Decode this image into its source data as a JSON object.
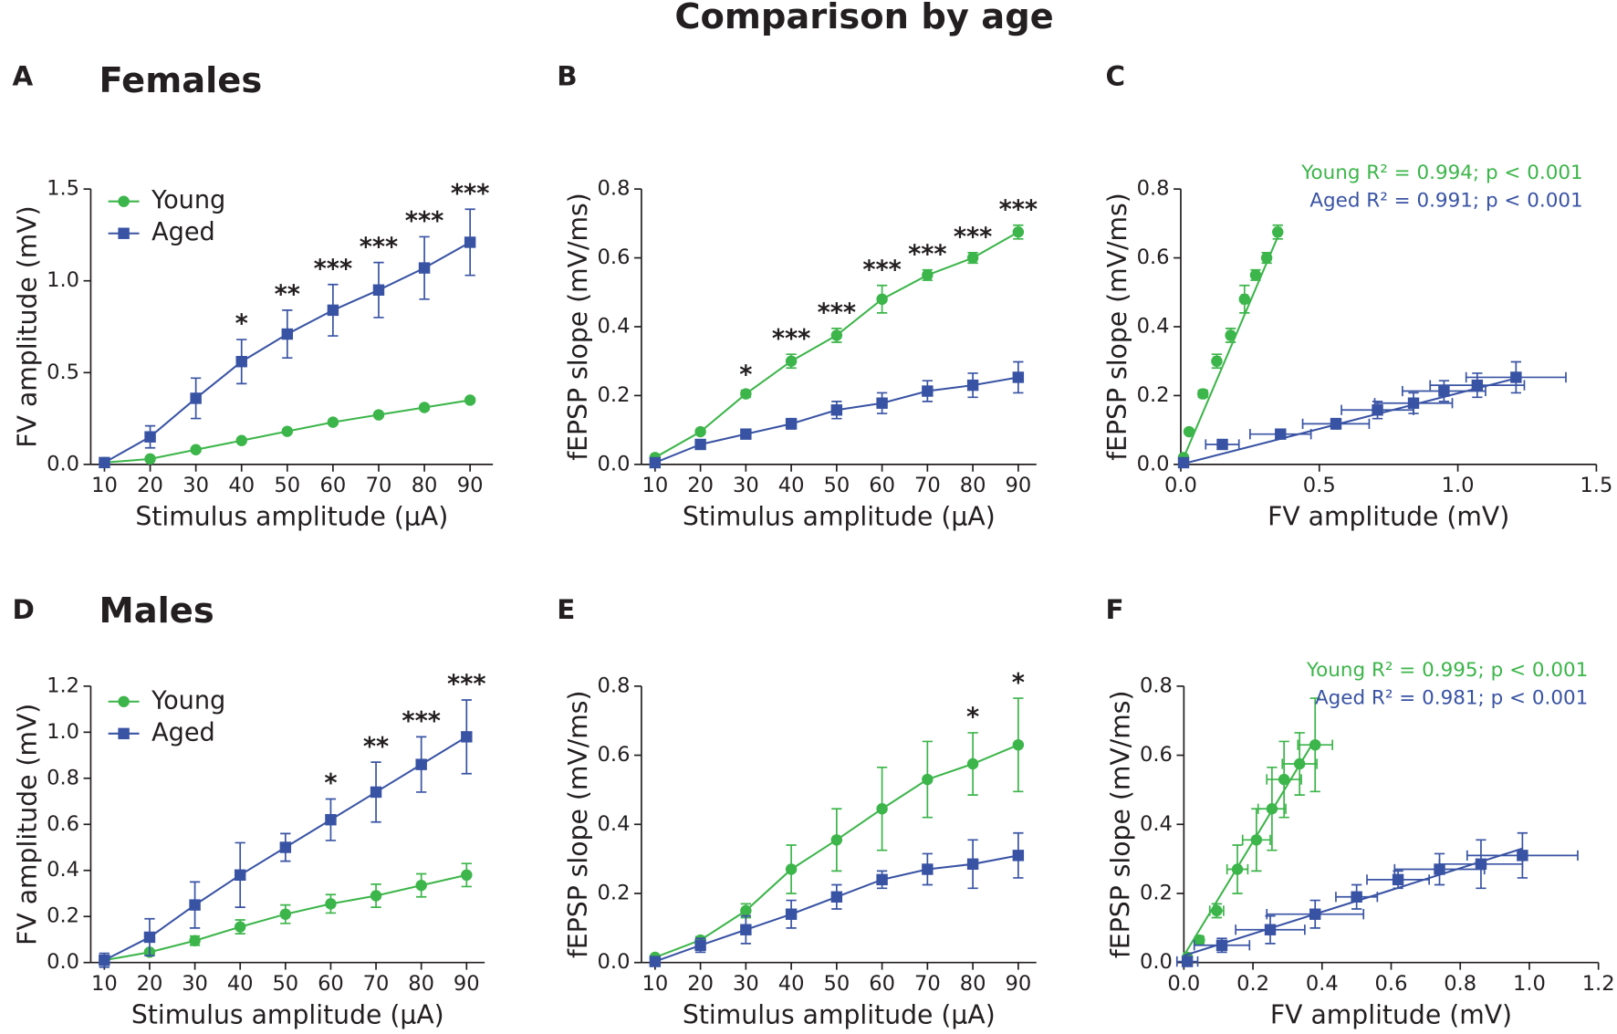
{
  "title": "Comparison by age",
  "chart_data": [
    {
      "type": "line",
      "panel": "A",
      "title": "Females",
      "xlabel": "Stimulus amplitude (µA)",
      "ylabel": "FV amplitude (mV)",
      "x": [
        10,
        20,
        30,
        40,
        50,
        60,
        70,
        80,
        90
      ],
      "xlim": [
        7,
        95
      ],
      "xticks": [
        10,
        20,
        30,
        40,
        50,
        60,
        70,
        80,
        90
      ],
      "ylim": [
        0,
        1.5
      ],
      "yticks": [
        {
          "value": 0,
          "label": "0.0"
        },
        0.5,
        {
          "value": 1,
          "label": "1.0"
        },
        1.5
      ],
      "legend": "upper left",
      "series": [
        {
          "name": "Young",
          "color": "#3cb54a",
          "marker": "circle",
          "values": [
            0.01,
            0.03,
            0.08,
            0.13,
            0.18,
            0.23,
            0.27,
            0.31,
            0.35
          ],
          "errors": [
            0.005,
            0.005,
            0.01,
            0.01,
            0.01,
            0.01,
            0.01,
            0.01,
            0.01
          ]
        },
        {
          "name": "Aged",
          "color": "#3953a4",
          "marker": "square",
          "values": [
            0.01,
            0.15,
            0.36,
            0.56,
            0.71,
            0.84,
            0.95,
            1.07,
            1.21
          ],
          "errors": [
            0.01,
            0.06,
            0.11,
            0.12,
            0.13,
            0.14,
            0.15,
            0.17,
            0.18
          ]
        }
      ],
      "annotations": [
        {
          "x": 40,
          "label": "*"
        },
        {
          "x": 50,
          "label": "**"
        },
        {
          "x": 60,
          "label": "***"
        },
        {
          "x": 70,
          "label": "***"
        },
        {
          "x": 80,
          "label": "***"
        },
        {
          "x": 90,
          "label": "***"
        }
      ]
    },
    {
      "type": "line",
      "panel": "B",
      "xlabel": "Stimulus amplitude (µA)",
      "ylabel": "fEPSP slope (mV/ms)",
      "x": [
        10,
        20,
        30,
        40,
        50,
        60,
        70,
        80,
        90
      ],
      "xlim": [
        7,
        94
      ],
      "xticks": [
        10,
        20,
        30,
        40,
        50,
        60,
        70,
        80,
        90
      ],
      "ylim": [
        0,
        0.8
      ],
      "yticks": [
        {
          "value": 0,
          "label": "0.0"
        },
        0.2,
        0.4,
        0.6,
        0.8
      ],
      "series": [
        {
          "name": "Young",
          "color": "#3cb54a",
          "marker": "circle",
          "values": [
            0.02,
            0.095,
            0.205,
            0.3,
            0.375,
            0.48,
            0.55,
            0.6,
            0.675
          ],
          "errors": [
            0.005,
            0.005,
            0.01,
            0.02,
            0.02,
            0.04,
            0.015,
            0.015,
            0.02
          ]
        },
        {
          "name": "Aged",
          "color": "#3953a4",
          "marker": "square",
          "values": [
            0.005,
            0.058,
            0.088,
            0.118,
            0.158,
            0.178,
            0.213,
            0.23,
            0.253
          ],
          "errors": [
            0.005,
            0.008,
            0.01,
            0.015,
            0.025,
            0.03,
            0.03,
            0.035,
            0.045
          ]
        }
      ],
      "annotations": [
        {
          "x": 30,
          "label": "*"
        },
        {
          "x": 40,
          "label": "***"
        },
        {
          "x": 50,
          "label": "***"
        },
        {
          "x": 60,
          "label": "***"
        },
        {
          "x": 70,
          "label": "***"
        },
        {
          "x": 80,
          "label": "***"
        },
        {
          "x": 90,
          "label": "***"
        }
      ]
    },
    {
      "type": "scatter",
      "panel": "C",
      "xlabel": "FV amplitude (mV)",
      "ylabel": "fEPSP slope (mV/ms)",
      "xlim": [
        0,
        1.5
      ],
      "xticks": [
        {
          "value": 0,
          "label": "0.0"
        },
        0.5,
        {
          "value": 1,
          "label": "1.0"
        },
        1.5
      ],
      "ylim": [
        0,
        0.8
      ],
      "yticks": [
        {
          "value": 0,
          "label": "0.0"
        },
        0.2,
        0.4,
        0.6,
        0.8
      ],
      "series": [
        {
          "label": "Young R² = 0.994; p < 0.001",
          "color": "#3cb54a",
          "marker": "circle",
          "x": [
            0.01,
            0.03,
            0.08,
            0.13,
            0.18,
            0.23,
            0.27,
            0.31,
            0.35
          ],
          "xerrors": [
            0.005,
            0.005,
            0.01,
            0.01,
            0.01,
            0.01,
            0.01,
            0.01,
            0.01
          ],
          "values": [
            0.02,
            0.095,
            0.205,
            0.3,
            0.375,
            0.48,
            0.55,
            0.6,
            0.675
          ],
          "errors": [
            0.005,
            0.005,
            0.01,
            0.02,
            0.02,
            0.04,
            0.015,
            0.015,
            0.02
          ],
          "fit_x": [
            0,
            0.36
          ],
          "fit_y": [
            0.0,
            0.68
          ]
        },
        {
          "label": "Aged R² = 0.991; p < 0.001",
          "color": "#3953a4",
          "marker": "square",
          "x": [
            0.01,
            0.15,
            0.36,
            0.56,
            0.71,
            0.84,
            0.95,
            1.07,
            1.21
          ],
          "xerrors": [
            0.01,
            0.06,
            0.11,
            0.12,
            0.13,
            0.14,
            0.15,
            0.17,
            0.18
          ],
          "values": [
            0.005,
            0.058,
            0.088,
            0.118,
            0.158,
            0.178,
            0.213,
            0.23,
            0.253
          ],
          "errors": [
            0.005,
            0.008,
            0.01,
            0.015,
            0.025,
            0.03,
            0.03,
            0.035,
            0.045
          ],
          "fit_x": [
            0,
            1.21
          ],
          "fit_y": [
            0.0,
            0.25
          ]
        }
      ]
    },
    {
      "type": "line",
      "panel": "D",
      "title": "Males",
      "xlabel": "Stimulus amplitude (µA)",
      "ylabel": "FV amplitude (mV)",
      "x": [
        10,
        20,
        30,
        40,
        50,
        60,
        70,
        80,
        90
      ],
      "xlim": [
        7,
        94
      ],
      "xticks": [
        10,
        20,
        30,
        40,
        50,
        60,
        70,
        80,
        90
      ],
      "ylim": [
        0,
        1.2
      ],
      "yticks": [
        {
          "value": 0,
          "label": "0.0"
        },
        0.2,
        0.4,
        0.6,
        0.8,
        {
          "value": 1,
          "label": "1.0"
        },
        1.2
      ],
      "legend": "upper left",
      "series": [
        {
          "name": "Young",
          "color": "#3cb54a",
          "marker": "circle",
          "values": [
            0.01,
            0.045,
            0.095,
            0.155,
            0.21,
            0.255,
            0.29,
            0.335,
            0.38
          ],
          "errors": [
            0.01,
            0.01,
            0.02,
            0.03,
            0.04,
            0.04,
            0.05,
            0.05,
            0.05
          ]
        },
        {
          "name": "Aged",
          "color": "#3953a4",
          "marker": "square",
          "values": [
            0.01,
            0.11,
            0.25,
            0.38,
            0.5,
            0.62,
            0.74,
            0.86,
            0.98
          ],
          "errors": [
            0.03,
            0.08,
            0.1,
            0.14,
            0.06,
            0.09,
            0.13,
            0.12,
            0.16
          ]
        }
      ],
      "annotations": [
        {
          "x": 60,
          "label": "*"
        },
        {
          "x": 70,
          "label": "**"
        },
        {
          "x": 80,
          "label": "***"
        },
        {
          "x": 90,
          "label": "***"
        }
      ]
    },
    {
      "type": "line",
      "panel": "E",
      "xlabel": "Stimulus amplitude (µA)",
      "ylabel": "fEPSP slope (mV/ms)",
      "x": [
        10,
        20,
        30,
        40,
        50,
        60,
        70,
        80,
        90
      ],
      "xlim": [
        7,
        94
      ],
      "xticks": [
        10,
        20,
        30,
        40,
        50,
        60,
        70,
        80,
        90
      ],
      "ylim": [
        0,
        0.8
      ],
      "yticks": [
        {
          "value": 0,
          "label": "0.0"
        },
        0.2,
        0.4,
        0.6,
        0.8
      ],
      "series": [
        {
          "name": "Young",
          "color": "#3cb54a",
          "marker": "circle",
          "values": [
            0.015,
            0.065,
            0.15,
            0.27,
            0.355,
            0.445,
            0.53,
            0.575,
            0.63
          ],
          "errors": [
            0.005,
            0.01,
            0.02,
            0.07,
            0.09,
            0.12,
            0.11,
            0.09,
            0.135
          ]
        },
        {
          "name": "Aged",
          "color": "#3953a4",
          "marker": "square",
          "values": [
            0.003,
            0.05,
            0.095,
            0.14,
            0.19,
            0.24,
            0.27,
            0.285,
            0.31
          ],
          "errors": [
            0.003,
            0.02,
            0.04,
            0.04,
            0.035,
            0.025,
            0.045,
            0.07,
            0.065
          ]
        }
      ],
      "annotations": [
        {
          "x": 80,
          "label": "*"
        },
        {
          "x": 90,
          "label": "*"
        }
      ]
    },
    {
      "type": "scatter",
      "panel": "F",
      "xlabel": "FV amplitude (mV)",
      "ylabel": "fEPSP slope (mV/ms)",
      "xlim": [
        0,
        1.2
      ],
      "xticks": [
        {
          "value": 0,
          "label": "0.0"
        },
        0.2,
        0.4,
        0.6,
        0.8,
        {
          "value": 1,
          "label": "1.0"
        },
        1.2
      ],
      "ylim": [
        0,
        0.8
      ],
      "yticks": [
        {
          "value": 0,
          "label": "0.0"
        },
        0.2,
        0.4,
        0.6,
        0.8
      ],
      "series": [
        {
          "label": "Young R² = 0.995; p < 0.001",
          "color": "#3cb54a",
          "marker": "circle",
          "x": [
            0.01,
            0.045,
            0.095,
            0.155,
            0.21,
            0.255,
            0.29,
            0.335,
            0.38
          ],
          "xerrors": [
            0.01,
            0.01,
            0.02,
            0.03,
            0.04,
            0.04,
            0.05,
            0.05,
            0.05
          ],
          "values": [
            0.015,
            0.065,
            0.15,
            0.27,
            0.355,
            0.445,
            0.53,
            0.575,
            0.63
          ],
          "errors": [
            0.005,
            0.01,
            0.02,
            0.07,
            0.09,
            0.12,
            0.11,
            0.09,
            0.135
          ],
          "fit_x": [
            0,
            0.37
          ],
          "fit_y": [
            0.02,
            0.63
          ]
        },
        {
          "label": "Aged R² = 0.981; p < 0.001",
          "color": "#3953a4",
          "marker": "square",
          "x": [
            0.01,
            0.11,
            0.25,
            0.38,
            0.5,
            0.62,
            0.74,
            0.86,
            0.98
          ],
          "xerrors": [
            0.03,
            0.08,
            0.1,
            0.14,
            0.06,
            0.09,
            0.13,
            0.12,
            0.16
          ],
          "values": [
            0.003,
            0.05,
            0.095,
            0.14,
            0.19,
            0.24,
            0.27,
            0.285,
            0.31
          ],
          "errors": [
            0.003,
            0.02,
            0.04,
            0.04,
            0.035,
            0.025,
            0.045,
            0.07,
            0.065
          ],
          "fit_x": [
            0,
            0.98
          ],
          "fit_y": [
            0.02,
            0.33
          ]
        }
      ]
    }
  ]
}
